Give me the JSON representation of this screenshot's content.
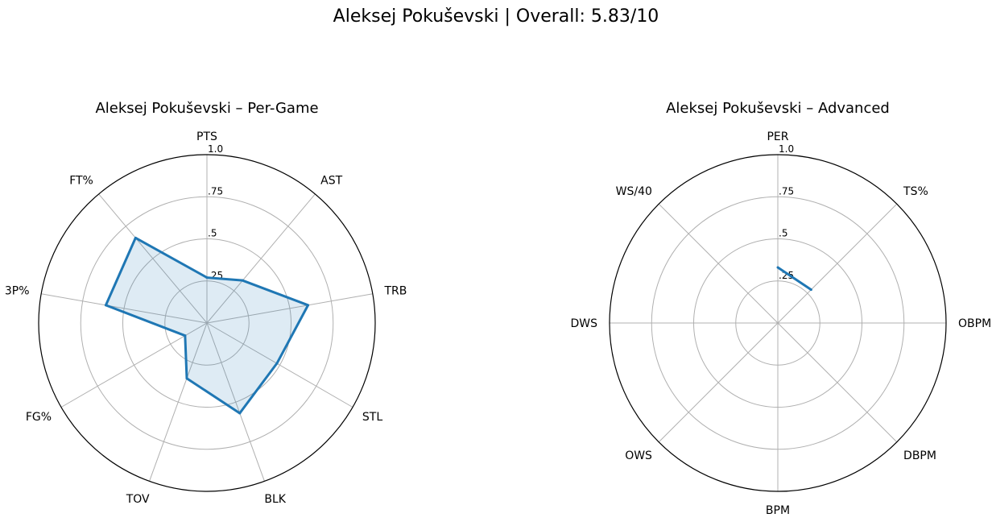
{
  "title": "Aleksej Pokuševski | Overall: 5.83/10",
  "colors": {
    "line": "#1f77b4",
    "fill": "#1f77b4",
    "grid": "#b0b0b0",
    "frame": "#000000"
  },
  "chart_data": [
    {
      "type": "radar",
      "title": "Aleksej Pokuševski – Per-Game",
      "categories": [
        "PTS",
        "AST",
        "TRB",
        "STL",
        "BLK",
        "TOV",
        "FG%",
        "3P%",
        "FT%"
      ],
      "values": [
        0.27,
        0.33,
        0.61,
        0.48,
        0.57,
        0.35,
        0.15,
        0.61,
        0.66
      ],
      "rlim": [
        0,
        1.0
      ],
      "rticks": [
        0.25,
        0.5,
        0.75,
        1.0
      ],
      "rtick_labels": [
        ".25",
        ".5",
        ".75",
        "1.0"
      ],
      "grid": true,
      "filled": true
    },
    {
      "type": "radar",
      "title": "Aleksej Pokuševski – Advanced",
      "categories": [
        "PER",
        "TS%",
        "OBPM",
        "DBPM",
        "BPM",
        "OWS",
        "DWS",
        "WS/40"
      ],
      "values": [
        0.33,
        0.28,
        null,
        null,
        null,
        null,
        null,
        null
      ],
      "rlim": [
        0,
        1.0
      ],
      "rticks": [
        0.25,
        0.5,
        0.75,
        1.0
      ],
      "rtick_labels": [
        ".25",
        ".5",
        ".75",
        "1.0"
      ],
      "grid": true,
      "filled": false
    }
  ]
}
